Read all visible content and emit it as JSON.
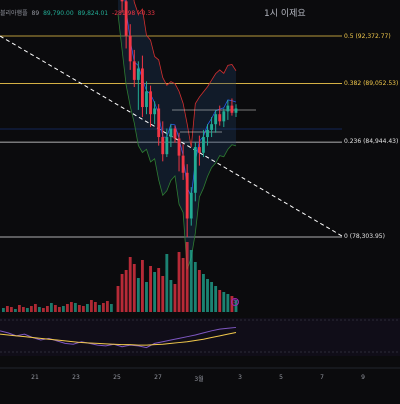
{
  "header": {
    "symbol_fragment": "블리아햄플",
    "ohlc_o": "89,790.00",
    "ohlc_h": "89,824.01",
    "ohlc_c": "-281.98 (-0.33",
    "ohlc_prefix": "89",
    "sub_title": "1시 이제요"
  },
  "colors": {
    "background": "#0b0b0d",
    "up": "#22ab94",
    "down": "#f23645",
    "fib": "#f2c94c",
    "trend": "#ffffff",
    "bb_upper": "#d32f2f",
    "bb_lower": "#2e7d32",
    "bb_basis": "#2962ff",
    "oscillator": "#7e57c2",
    "oscillator_signal": "#f2c94c"
  },
  "chart_data": {
    "type": "candlestick",
    "title": "",
    "fib_levels": [
      {
        "ratio": "0.5",
        "price": "92,372.77",
        "label": "0.5 (92,372.77)"
      },
      {
        "ratio": "0.382",
        "price": "89,052.53",
        "label": "0.382 (89,052.53)"
      },
      {
        "ratio": "0.236",
        "price": "84,944.43",
        "label": "0.236 (84,944.43)"
      },
      {
        "ratio": "0",
        "price": "78,303.95",
        "label": "0 (78,303.95)"
      }
    ],
    "x_ticks": [
      "21",
      "23",
      "25",
      "27",
      "3월",
      "3",
      "5",
      "7",
      "9"
    ],
    "candles": [
      {
        "o": 98500,
        "h": 99000,
        "l": 96500,
        "c": 97000
      },
      {
        "o": 97000,
        "h": 97800,
        "l": 94000,
        "c": 94800
      },
      {
        "o": 94800,
        "h": 95600,
        "l": 91500,
        "c": 92400
      },
      {
        "o": 92400,
        "h": 93200,
        "l": 90000,
        "c": 90600
      },
      {
        "o": 90600,
        "h": 91400,
        "l": 88800,
        "c": 89300
      },
      {
        "o": 89300,
        "h": 90600,
        "l": 87200,
        "c": 90100
      },
      {
        "o": 90100,
        "h": 91000,
        "l": 86700,
        "c": 87400
      },
      {
        "o": 87400,
        "h": 89200,
        "l": 86900,
        "c": 88500
      },
      {
        "o": 88500,
        "h": 88900,
        "l": 86000,
        "c": 86900
      },
      {
        "o": 86900,
        "h": 87800,
        "l": 86200,
        "c": 87300
      },
      {
        "o": 87300,
        "h": 87600,
        "l": 84700,
        "c": 85300
      },
      {
        "o": 85300,
        "h": 86400,
        "l": 83600,
        "c": 84100
      },
      {
        "o": 84100,
        "h": 85900,
        "l": 83900,
        "c": 85300
      },
      {
        "o": 85300,
        "h": 86200,
        "l": 84600,
        "c": 85900
      },
      {
        "o": 85900,
        "h": 86100,
        "l": 84900,
        "c": 85200
      },
      {
        "o": 85200,
        "h": 85600,
        "l": 82900,
        "c": 84000
      },
      {
        "o": 84000,
        "h": 84800,
        "l": 82300,
        "c": 82800
      },
      {
        "o": 82800,
        "h": 83400,
        "l": 78300,
        "c": 79600
      },
      {
        "o": 79600,
        "h": 81800,
        "l": 79100,
        "c": 81400
      },
      {
        "o": 81400,
        "h": 84900,
        "l": 80800,
        "c": 84600
      },
      {
        "o": 84600,
        "h": 85400,
        "l": 83300,
        "c": 84200
      },
      {
        "o": 84200,
        "h": 85800,
        "l": 83900,
        "c": 85300
      },
      {
        "o": 85300,
        "h": 86200,
        "l": 84700,
        "c": 85800
      },
      {
        "o": 85800,
        "h": 86700,
        "l": 85300,
        "c": 86200
      },
      {
        "o": 86200,
        "h": 87200,
        "l": 85600,
        "c": 86900
      },
      {
        "o": 86900,
        "h": 87500,
        "l": 86100,
        "c": 86400
      },
      {
        "o": 86400,
        "h": 87300,
        "l": 86000,
        "c": 87100
      },
      {
        "o": 87100,
        "h": 87900,
        "l": 86500,
        "c": 87500
      },
      {
        "o": 87500,
        "h": 88000,
        "l": 86800,
        "c": 87000
      },
      {
        "o": 87000,
        "h": 87600,
        "l": 86700,
        "c": 87300
      }
    ],
    "volumes": [
      26,
      38,
      42,
      55,
      48,
      34,
      52,
      30,
      46,
      40,
      44,
      36,
      58,
      32,
      28,
      60,
      54,
      70,
      62,
      50,
      42,
      38,
      33,
      30,
      26,
      22,
      20,
      18,
      16,
      12
    ],
    "volume_left": [
      4,
      6,
      5,
      3,
      7,
      5,
      4,
      6,
      8,
      5,
      4,
      6,
      9,
      7,
      5,
      6,
      8,
      10,
      9,
      7,
      6,
      8,
      12,
      10,
      7,
      9,
      11,
      8
    ],
    "oscillator": [
      60,
      55,
      48,
      52,
      44,
      38,
      42,
      36,
      30,
      28,
      34,
      30,
      26,
      24,
      28,
      22,
      26,
      24,
      20,
      30,
      34,
      38,
      42,
      46,
      50,
      55,
      60,
      64,
      66,
      68
    ],
    "oscillator_signal": [
      52,
      50,
      48,
      46,
      44,
      42,
      40,
      38,
      36,
      34,
      32,
      31,
      30,
      29,
      28,
      27,
      27,
      26,
      26,
      27,
      28,
      30,
      32,
      34,
      37,
      40,
      44,
      48,
      52,
      56
    ],
    "marker_label": "S"
  }
}
